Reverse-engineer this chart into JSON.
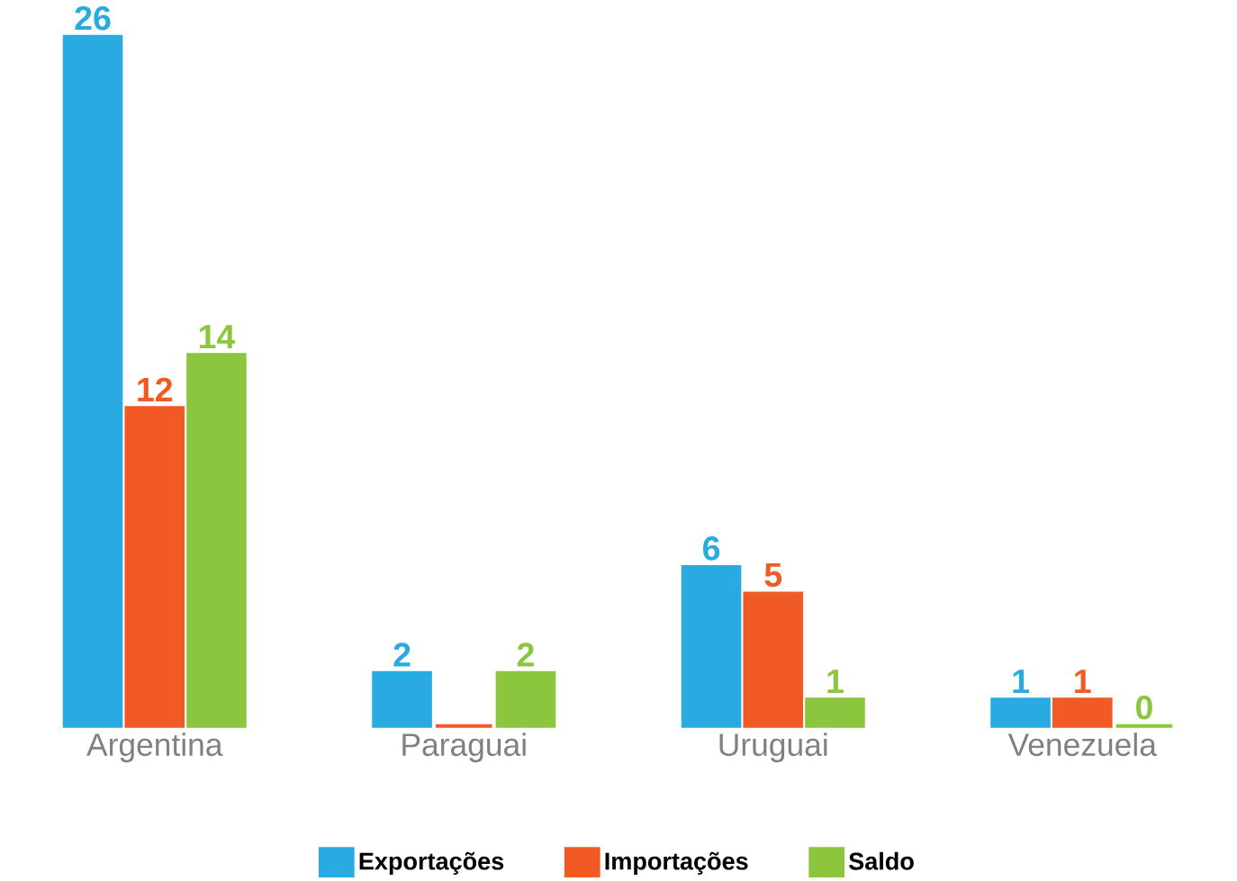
{
  "chart_data": {
    "type": "bar",
    "categories": [
      "Argentina",
      "Paraguai",
      "Uruguai",
      "Venezuela"
    ],
    "series": [
      {
        "name": "Exportações",
        "color": "#29abe2",
        "values": [
          26,
          2,
          6,
          1
        ],
        "value_labels": [
          "26",
          "2",
          "6",
          "1"
        ]
      },
      {
        "name": "Importações",
        "color": "#f15a24",
        "values": [
          12,
          0,
          5,
          1
        ],
        "value_labels": [
          "12",
          null,
          "5",
          "1"
        ]
      },
      {
        "name": "Saldo",
        "color": "#8cc63f",
        "values": [
          14,
          2,
          1,
          0
        ],
        "value_labels": [
          "14",
          "2",
          "1",
          "0"
        ]
      }
    ],
    "ylim": [
      0,
      26
    ],
    "legend": "bottom",
    "grid": false
  }
}
